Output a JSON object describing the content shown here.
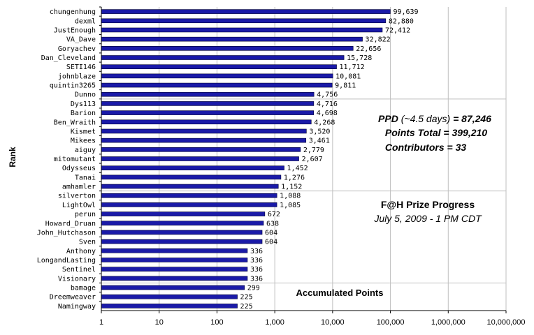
{
  "chart_data": {
    "type": "bar",
    "orientation": "horizontal",
    "x_scale": "log",
    "xlim": [
      1,
      10000000
    ],
    "x_ticks": [
      "1",
      "10",
      "100",
      "1,000",
      "10,000",
      "100,000",
      "1,000,000",
      "10,000,000"
    ],
    "ylabel": "Rank",
    "bar_color": "#1a1aa8",
    "categories": [
      "chungenhung",
      "dexml",
      "JustEnough",
      "VA_Dave",
      "Goryachev",
      "Dan_Cleveland",
      "SETI146",
      "johnblaze",
      "quintin3265",
      "Dunno",
      "Dys113",
      "Barion",
      "Ben_Wraith",
      "Kismet",
      "Mikees",
      "aiguy",
      "mitomutant",
      "Odysseus",
      "Tanai",
      "amhamler",
      "silverton",
      "LightOwl",
      "perun",
      "Howard_Druan",
      "John_Hutchason",
      "Sven",
      "Anthony",
      "LongandLasting",
      "Sentinel",
      "Visionary",
      "bamage",
      "Dreemweaver",
      "Namingway"
    ],
    "values": [
      99639,
      82880,
      72412,
      32822,
      22656,
      15728,
      11712,
      10081,
      9811,
      4756,
      4716,
      4698,
      4268,
      3520,
      3461,
      2779,
      2607,
      1452,
      1276,
      1152,
      1088,
      1085,
      672,
      638,
      604,
      604,
      336,
      336,
      336,
      336,
      299,
      225,
      225
    ],
    "value_labels": [
      "99,639",
      "82,880",
      "72,412",
      "32,822",
      "22,656",
      "15,728",
      "11,712",
      "10,081",
      "9,811",
      "4,756",
      "4,716",
      "4,698",
      "4,268",
      "3,520",
      "3,461",
      "2,779",
      "2,607",
      "1,452",
      "1,276",
      "1,152",
      "1,088",
      "1,085",
      "672",
      "638",
      "604",
      "604",
      "336",
      "336",
      "336",
      "336",
      "299",
      "225",
      "225"
    ],
    "annotations": {
      "ppd_label": "PPD",
      "ppd_period": "(~4.5 days)",
      "ppd_value": "= 87,246",
      "points_total": "Points Total = 399,210",
      "contributors": "Contributors = 33",
      "progress_title": "F@H Prize Progress",
      "progress_date": "July 5, 2009 - 1 PM CDT",
      "accumulated": "Accumulated Points"
    }
  }
}
